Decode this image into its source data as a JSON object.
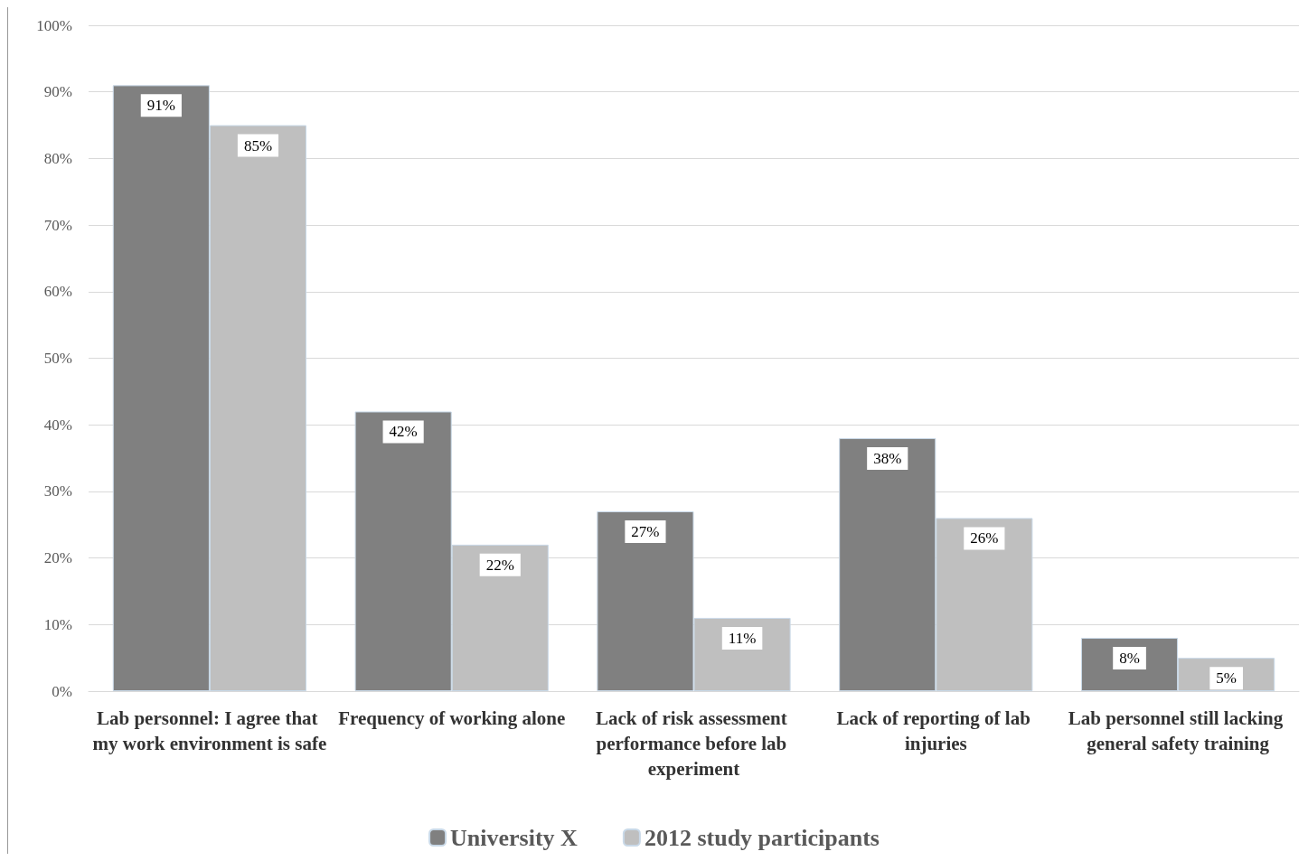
{
  "chart_data": {
    "type": "bar",
    "categories": [
      "Lab personnel: I agree that my work environment is safe",
      "Frequency of working alone",
      "Lack of risk assessment performance before lab experiment",
      "Lack of reporting of lab injuries",
      "Lab personnel still lacking general safety training"
    ],
    "series": [
      {
        "name": "University X",
        "color": "#808080",
        "values": [
          91,
          42,
          27,
          38,
          8
        ],
        "value_labels": [
          "91%",
          "42%",
          "27%",
          "38%",
          "8%"
        ]
      },
      {
        "name": "2012 study participants",
        "color": "#bfbfbf",
        "values": [
          85,
          22,
          11,
          26,
          5
        ],
        "value_labels": [
          "85%",
          "22%",
          "11%",
          "26%",
          "5%"
        ]
      }
    ],
    "ylim": [
      0,
      100
    ],
    "yticks": [
      {
        "value": 0,
        "label": "0%"
      },
      {
        "value": 10,
        "label": "10%"
      },
      {
        "value": 20,
        "label": "20%"
      },
      {
        "value": 30,
        "label": "30%"
      },
      {
        "value": 40,
        "label": "40%"
      },
      {
        "value": 50,
        "label": "50%"
      },
      {
        "value": 60,
        "label": "60%"
      },
      {
        "value": 70,
        "label": "70%"
      },
      {
        "value": 80,
        "label": "80%"
      },
      {
        "value": 90,
        "label": "90%"
      },
      {
        "value": 100,
        "label": "100%"
      }
    ],
    "grid": "y",
    "legend": "bottom"
  }
}
